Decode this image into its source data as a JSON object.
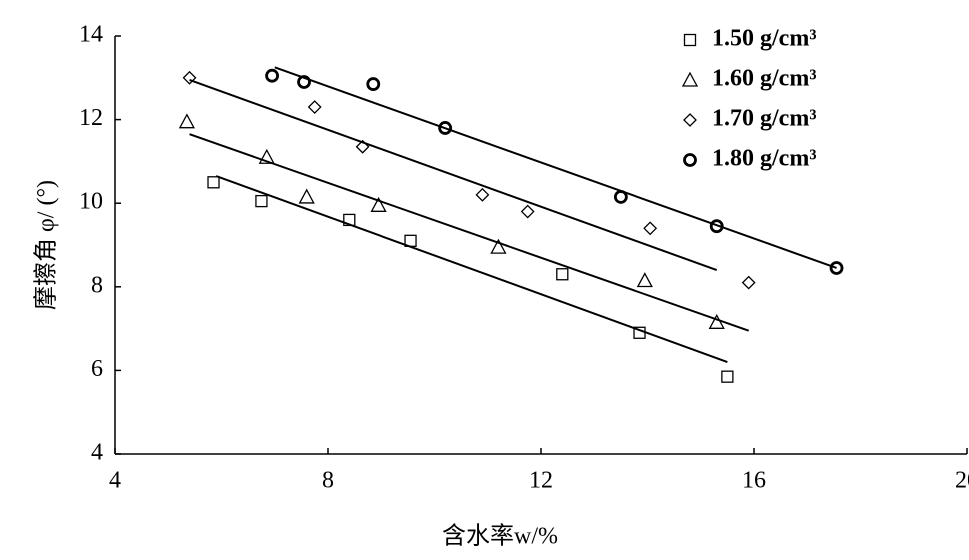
{
  "chart_data": {
    "type": "scatter",
    "xlabel": "含水率w/%",
    "ylabel": "摩擦角 φ/ (°)",
    "xlim": [
      4,
      20
    ],
    "xticks": [
      4,
      8,
      12,
      16,
      20
    ],
    "ylim": [
      4,
      14
    ],
    "yticks": [
      4,
      6,
      8,
      10,
      12,
      14
    ],
    "legend": "upper right",
    "series": [
      {
        "name": "1.50 g/cm³",
        "marker": "square",
        "color": "#000000",
        "x": [
          5.85,
          6.75,
          8.4,
          9.55,
          12.4,
          13.85,
          15.5
        ],
        "values": [
          10.5,
          10.05,
          9.6,
          9.1,
          8.3,
          6.9,
          5.85
        ],
        "fit": {
          "x": [
            5.9,
            15.5
          ],
          "values": [
            10.65,
            6.2
          ]
        }
      },
      {
        "name": "1.60 g/cm³",
        "marker": "triangle",
        "color": "#000000",
        "x": [
          5.35,
          6.85,
          7.6,
          8.95,
          11.2,
          13.95,
          15.3
        ],
        "values": [
          11.95,
          11.1,
          10.15,
          9.95,
          8.95,
          8.15,
          7.15
        ],
        "fit": {
          "x": [
            5.4,
            15.9
          ],
          "values": [
            11.65,
            6.95
          ]
        }
      },
      {
        "name": "1.70 g/cm³",
        "marker": "diamond",
        "color": "#000000",
        "x": [
          5.4,
          7.75,
          8.65,
          10.9,
          11.75,
          14.05,
          15.9
        ],
        "values": [
          13.0,
          12.3,
          11.35,
          10.2,
          9.8,
          9.4,
          8.1
        ],
        "fit": {
          "x": [
            5.4,
            15.3
          ],
          "values": [
            12.95,
            8.4
          ]
        }
      },
      {
        "name": "1.80 g/cm³",
        "marker": "circle",
        "color": "#000000",
        "x": [
          6.95,
          7.55,
          8.85,
          10.2,
          13.5,
          15.3,
          17.55
        ],
        "values": [
          13.05,
          12.9,
          12.85,
          11.8,
          10.15,
          9.45,
          8.45
        ],
        "fit": {
          "x": [
            7.0,
            17.55
          ],
          "values": [
            13.25,
            8.45
          ]
        }
      }
    ]
  }
}
